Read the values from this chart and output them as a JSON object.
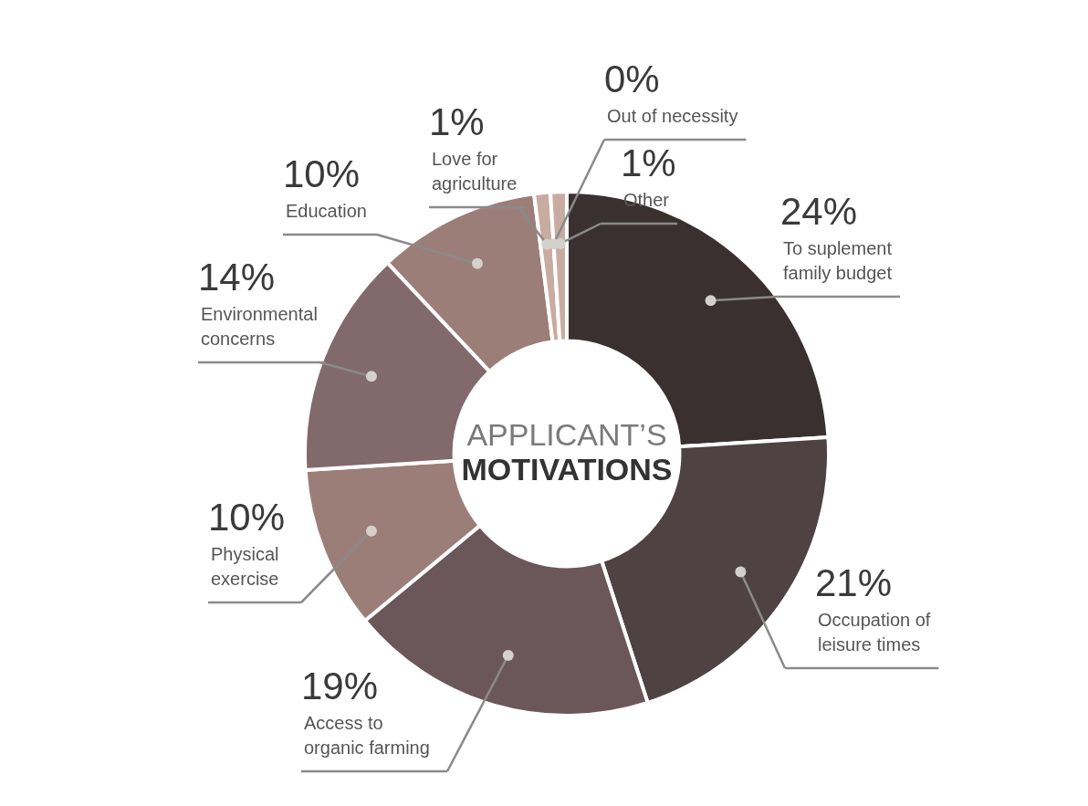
{
  "chart_data": {
    "type": "donut",
    "title": "APPLICANT’S MOTIVATIONS",
    "categories": [
      "To suplement family budget",
      "Occupation of leisure times",
      "Access to organic farming",
      "Physical exercise",
      "Environmental concerns",
      "Education",
      "Love for agriculture",
      "Out of necessity",
      "Other"
    ],
    "values": [
      24,
      21,
      19,
      10,
      14,
      10,
      1,
      0,
      1
    ],
    "value_labels": [
      "24%",
      "21%",
      "19%",
      "10%",
      "14%",
      "10%",
      "1%",
      "0%",
      "1%"
    ],
    "colors": [
      "#3b3030",
      "#4e4242",
      "#6b5759",
      "#9b7e78",
      "#826a6c",
      "#9b7e78",
      "#c9aca1",
      "#e2d3cb",
      "#c9aca1"
    ],
    "legend": false
  }
}
